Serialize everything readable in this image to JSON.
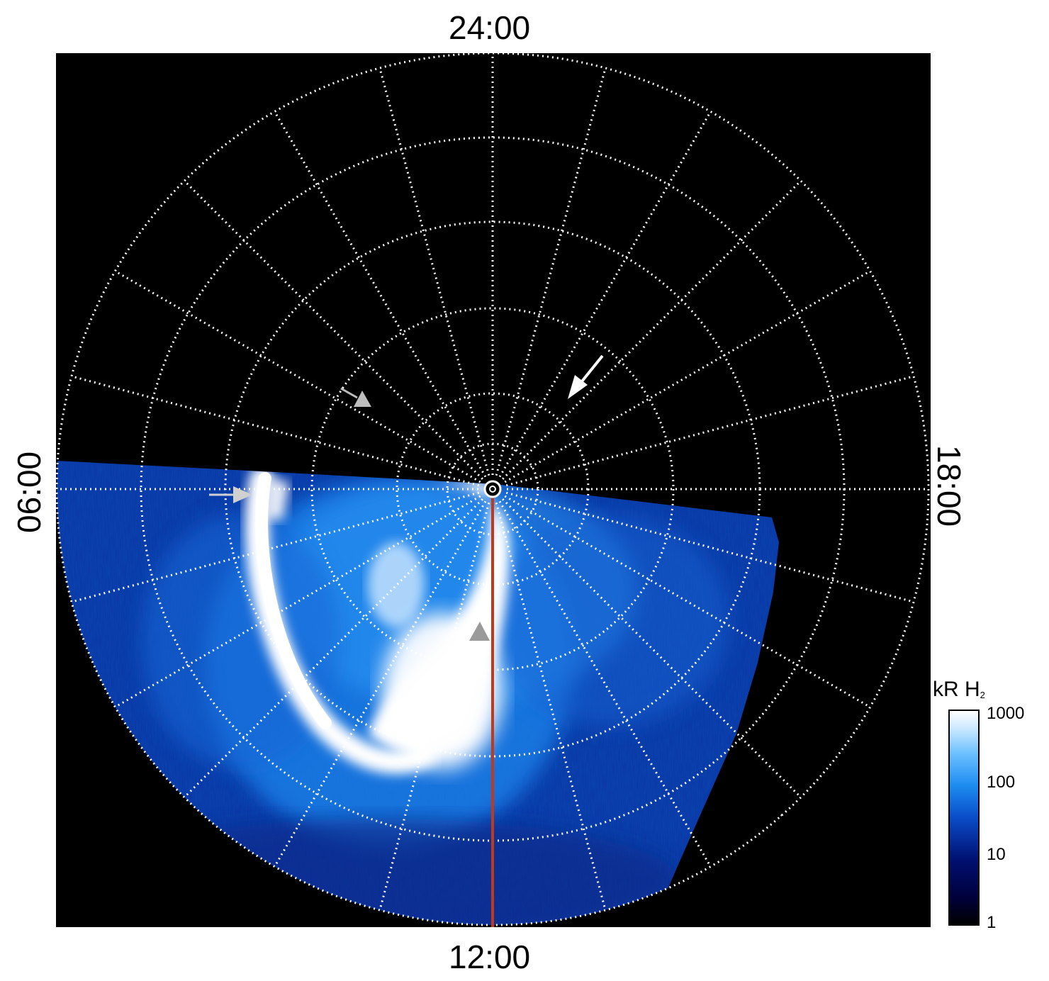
{
  "local_time_labels": {
    "top": "24:00",
    "bottom": "12:00",
    "left": "06:00",
    "right": "18:00"
  },
  "colorbar": {
    "title_main": "kR H",
    "title_sub": "2",
    "ticks": [
      "1000",
      "100",
      "10",
      "1"
    ],
    "tick_values": [
      1000,
      100,
      10,
      1
    ],
    "scale": "log"
  },
  "colors": {
    "background": "#000000",
    "grid": "#ffffff",
    "meridian_line": "#c0391b",
    "arrow_white": "#ffffff",
    "arrow_gray": "#bdbdbd",
    "emission_dim": "#0a2a8a",
    "emission_mid": "#1d7fe8",
    "emission_bright": "#ffffff"
  },
  "annotations": [
    {
      "name": "white-arrow",
      "color": "white"
    },
    {
      "name": "gray-arrow-upper-left",
      "color": "gray"
    },
    {
      "name": "gray-arrow-left",
      "color": "gray"
    },
    {
      "name": "gray-triangle-marker",
      "color": "gray"
    }
  ]
}
